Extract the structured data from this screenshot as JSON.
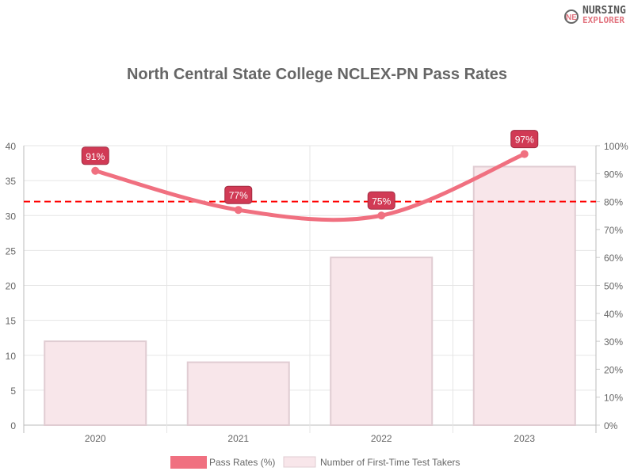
{
  "logo": {
    "line1": "NURSING",
    "line2": "EXPLORER"
  },
  "chart_data": {
    "type": "bar+line",
    "title": "North Central State College NCLEX-PN Pass Rates",
    "categories": [
      "2020",
      "2021",
      "2022",
      "2023"
    ],
    "series": [
      {
        "name": "Pass Rates (%)",
        "type": "line",
        "axis": "right",
        "values": [
          91,
          77,
          75,
          97
        ],
        "labels": [
          "91%",
          "77%",
          "75%",
          "97%"
        ],
        "color": "#f07080"
      },
      {
        "name": "Number of First-Time Test Takers",
        "type": "bar",
        "axis": "left",
        "values": [
          12,
          9,
          24,
          37
        ],
        "color": "#f8e6ea"
      }
    ],
    "reference_line": {
      "axis": "right",
      "value": 80,
      "color": "#ff0000",
      "style": "dashed"
    },
    "y_left": {
      "min": 0,
      "max": 40,
      "ticks": [
        "0",
        "5",
        "10",
        "15",
        "20",
        "25",
        "30",
        "35",
        "40"
      ]
    },
    "y_right": {
      "min": 0,
      "max": 100,
      "ticks": [
        "0%",
        "10%",
        "20%",
        "30%",
        "40%",
        "50%",
        "60%",
        "70%",
        "80%",
        "90%",
        "100%"
      ]
    },
    "grid": true,
    "legend": "bottom"
  }
}
